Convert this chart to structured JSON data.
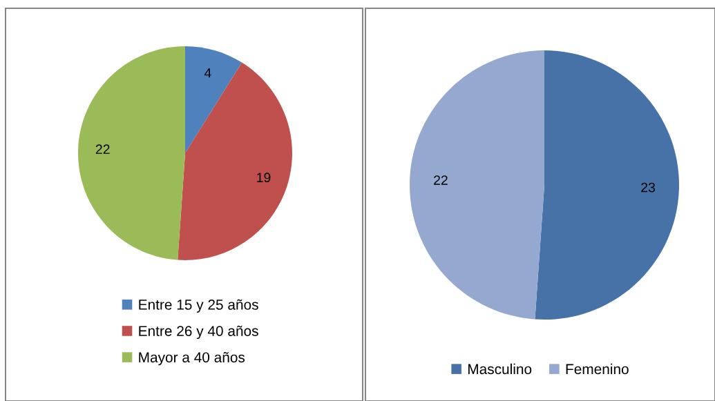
{
  "chart_data": [
    {
      "type": "pie",
      "categories": [
        "Entre 15 y 25 años",
        "Entre 26 y 40 años",
        "Mayor a 40 años"
      ],
      "values": [
        4,
        19,
        22
      ],
      "colors": [
        "#4f81bd",
        "#c0504d",
        "#9bbb59"
      ],
      "data_labels": true,
      "legend": "bottom"
    },
    {
      "type": "pie",
      "categories": [
        "Masculino",
        "Femenino"
      ],
      "values": [
        23,
        22
      ],
      "colors": [
        "#4672a8",
        "#95a9d0"
      ],
      "data_labels": true,
      "legend": "bottom"
    }
  ]
}
